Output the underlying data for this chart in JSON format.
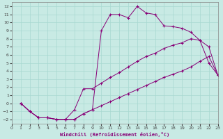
{
  "xlabel": "Windchill (Refroidissement éolien,°C)",
  "xlim": [
    0,
    23
  ],
  "ylim": [
    -2.5,
    12.5
  ],
  "xticks": [
    0,
    1,
    2,
    3,
    4,
    5,
    6,
    7,
    8,
    9,
    10,
    11,
    12,
    13,
    14,
    15,
    16,
    17,
    18,
    19,
    20,
    21,
    22,
    23
  ],
  "yticks": [
    -2,
    -1,
    0,
    1,
    2,
    3,
    4,
    5,
    6,
    7,
    8,
    9,
    10,
    11,
    12
  ],
  "bg_color": "#c8eae4",
  "line_color": "#880077",
  "grid_color": "#a8d8d0",
  "series": [
    {
      "x": [
        1,
        2,
        3,
        4,
        5,
        6,
        7,
        8,
        9,
        10,
        11,
        12,
        13,
        14,
        15,
        16,
        17,
        18,
        19,
        20,
        21,
        22,
        23
      ],
      "y": [
        0,
        -1,
        -1.8,
        -1.8,
        -2.0,
        -2.0,
        -2.0,
        -1.3,
        -0.8,
        9.0,
        11.0,
        11.0,
        10.6,
        12.0,
        11.2,
        11.0,
        9.6,
        9.5,
        9.3,
        8.8,
        7.8,
        7.0,
        3.5
      ]
    },
    {
      "x": [
        1,
        2,
        3,
        4,
        5,
        6,
        7,
        8,
        9,
        10,
        11,
        12,
        13,
        14,
        15,
        16,
        17,
        18,
        19,
        20,
        21,
        22,
        23
      ],
      "y": [
        0,
        -1,
        -1.8,
        -1.8,
        -2.0,
        -2.0,
        -0.8,
        1.8,
        1.8,
        2.5,
        3.2,
        3.8,
        4.5,
        5.2,
        5.8,
        6.2,
        6.8,
        7.2,
        7.5,
        8.0,
        7.8,
        5.0,
        3.5
      ]
    },
    {
      "x": [
        1,
        2,
        3,
        4,
        5,
        6,
        7,
        8,
        9,
        10,
        11,
        12,
        13,
        14,
        15,
        16,
        17,
        18,
        19,
        20,
        21,
        22,
        23
      ],
      "y": [
        0,
        -1,
        -1.8,
        -1.8,
        -2.0,
        -2.0,
        -2.0,
        -1.3,
        -0.8,
        -0.3,
        0.2,
        0.7,
        1.2,
        1.7,
        2.2,
        2.7,
        3.2,
        3.6,
        4.0,
        4.5,
        5.2,
        5.8,
        3.5
      ]
    }
  ]
}
